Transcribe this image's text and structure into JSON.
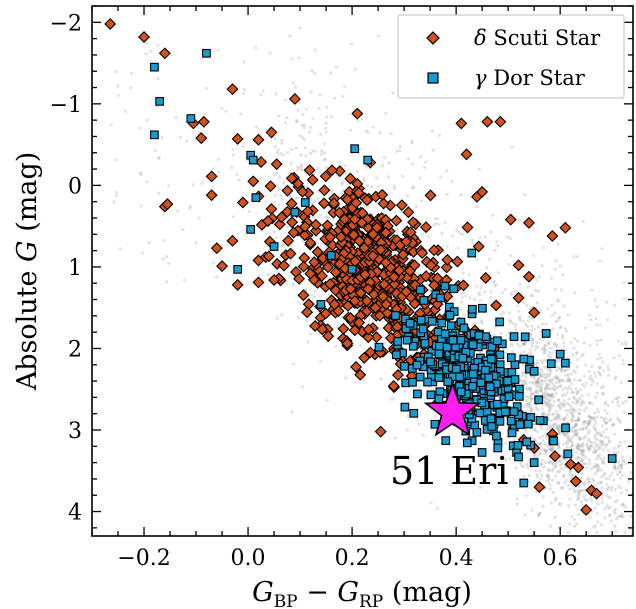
{
  "chart_data": {
    "type": "scatter",
    "title": "",
    "xlabel": {
      "prefix": "G",
      "sub1": "BP",
      "mid": " − G",
      "sub2": "RP",
      "suffix": " (mag)"
    },
    "ylabel": {
      "prefix": "Absolute ",
      "var": "G",
      "suffix": " (mag)"
    },
    "xlim": [
      -0.3,
      0.74
    ],
    "ylim": [
      4.3,
      -2.2
    ],
    "y_inverted": true,
    "x_ticks": [
      -0.2,
      0.0,
      0.2,
      0.4,
      0.6
    ],
    "x_tick_labels": [
      "−0.2",
      "0.0",
      "0.2",
      "0.4",
      "0.6"
    ],
    "y_ticks": [
      -2,
      -1,
      0,
      1,
      2,
      3,
      4
    ],
    "y_tick_labels": [
      "−2",
      "−1",
      "0",
      "1",
      "2",
      "3",
      "4"
    ],
    "grid": false,
    "legend_position": "top-right",
    "legend": [
      {
        "greek": "δ",
        "text": " Scuti Star",
        "marker": "diamond",
        "color": "#d2521c"
      },
      {
        "greek": "γ",
        "text": " Dor Star",
        "marker": "square",
        "color": "#1b9ad0"
      }
    ],
    "background_field": {
      "description_color": "#9a9a9a",
      "count": 2200
    },
    "colors": {
      "delta_scuti": "#d2521c",
      "gamma_dor": "#1b9ad0",
      "target": "#ff1ef0",
      "edge": "#000000"
    },
    "series": [
      {
        "name": "δ Scuti Star",
        "marker": "diamond",
        "points": [
          [
            -0.265,
            -1.98
          ],
          [
            -0.2,
            -1.82
          ],
          [
            -0.16,
            -1.62
          ],
          [
            -0.16,
            0.26
          ],
          [
            -0.155,
            0.23
          ],
          [
            -0.105,
            -0.76
          ],
          [
            -0.085,
            -0.78
          ],
          [
            -0.09,
            -0.58
          ],
          [
            -0.07,
            -0.11
          ],
          [
            -0.07,
            0.12
          ],
          [
            -0.03,
            -1.18
          ],
          [
            -0.02,
            -0.57
          ],
          [
            -0.01,
            0.21
          ],
          [
            0.01,
            -0.05
          ],
          [
            0.02,
            -0.56
          ],
          [
            0.045,
            -0.65
          ],
          [
            0.055,
            -0.26
          ],
          [
            0.09,
            -1.06
          ],
          [
            -0.06,
            0.77
          ],
          [
            -0.05,
            0.99
          ],
          [
            -0.03,
            0.68
          ],
          [
            -0.02,
            1.22
          ],
          [
            0.02,
            1.19
          ],
          [
            0.02,
            0.92
          ],
          [
            0.04,
            0.87
          ],
          [
            0.05,
            1.16
          ],
          [
            0.21,
            -0.88
          ],
          [
            0.235,
            -0.28
          ],
          [
            0.22,
            0.34
          ],
          [
            0.265,
            0.58
          ],
          [
            0.28,
            2.46
          ],
          [
            0.255,
            3.02
          ],
          [
            0.41,
            -0.76
          ],
          [
            0.46,
            -0.78
          ],
          [
            0.485,
            -0.78
          ],
          [
            0.505,
            0.42
          ],
          [
            0.54,
            0.46
          ],
          [
            0.585,
            0.62
          ],
          [
            0.61,
            0.52
          ],
          [
            0.42,
            -0.38
          ],
          [
            0.44,
            0.14
          ],
          [
            0.45,
            0.08
          ],
          [
            0.52,
            0.98
          ],
          [
            0.54,
            1.12
          ],
          [
            0.52,
            1.38
          ],
          [
            0.55,
            1.56
          ],
          [
            0.62,
            3.42
          ],
          [
            0.635,
            3.46
          ],
          [
            0.56,
            3.7
          ],
          [
            0.63,
            3.63
          ],
          [
            0.66,
            3.74
          ],
          [
            0.65,
            3.98
          ],
          [
            0.67,
            3.78
          ],
          [
            0.585,
            3.05
          ],
          [
            0.55,
            3.22
          ],
          [
            0.53,
            3.12
          ],
          [
            0.59,
            3.32
          ]
        ]
      },
      {
        "name": "γ Dor Star",
        "marker": "square",
        "points": [
          [
            -0.18,
            -1.45
          ],
          [
            -0.17,
            -1.03
          ],
          [
            -0.18,
            -0.62
          ],
          [
            -0.11,
            -0.82
          ],
          [
            -0.08,
            -1.62
          ],
          [
            0.005,
            -0.37
          ],
          [
            0.01,
            -0.31
          ],
          [
            0.015,
            0.15
          ],
          [
            -0.02,
            1.03
          ],
          [
            0.005,
            0.54
          ],
          [
            0.05,
            0.75
          ],
          [
            0.205,
            -0.45
          ],
          [
            0.23,
            -0.31
          ],
          [
            0.11,
            0.21
          ],
          [
            0.53,
            2.13
          ],
          [
            0.55,
            2.28
          ],
          [
            0.6,
            2.07
          ],
          [
            0.61,
            2.18
          ],
          [
            0.7,
            3.35
          ],
          [
            0.55,
            3.4
          ],
          [
            0.53,
            3.65
          ],
          [
            0.48,
            3.22
          ],
          [
            0.38,
            3.13
          ],
          [
            0.52,
            3.33
          ],
          [
            0.2,
            1.03
          ],
          [
            0.16,
            0.86
          ],
          [
            0.09,
            0.33
          ],
          [
            0.14,
            1.46
          ],
          [
            0.43,
            0.83
          ],
          [
            0.37,
            1.38
          ]
        ]
      }
    ],
    "cluster_generation": {
      "delta_scuti": {
        "count": 640,
        "x_mean": 0.24,
        "x_sd": 0.085,
        "trend": 6.3,
        "y_offset": 0.09,
        "y_sd": 0.47
      },
      "gamma_dor": {
        "count": 340,
        "x_mean": 0.43,
        "x_sd": 0.065,
        "trend": 5.8,
        "y_offset": -0.32,
        "y_sd": 0.36
      }
    },
    "target": {
      "label": "51 Eri",
      "x": 0.393,
      "y": 2.78,
      "marker": "star"
    }
  }
}
